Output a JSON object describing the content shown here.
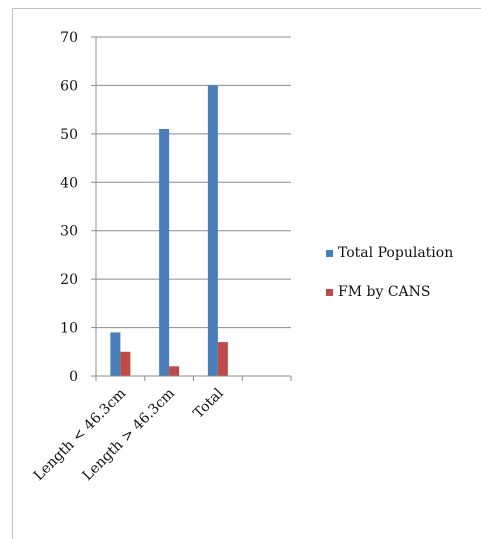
{
  "chart_data": {
    "type": "bar",
    "categories": [
      "Length < 46.3cm",
      "Length > 46.3cm",
      "Total",
      ""
    ],
    "series": [
      {
        "name": "Total Population",
        "color": "#4a7ebb",
        "values": [
          9,
          51,
          60,
          null
        ]
      },
      {
        "name": "FM by CANS",
        "color": "#be4b48",
        "values": [
          5,
          2,
          7,
          null
        ]
      }
    ],
    "ylim": [
      0,
      70
    ],
    "yticks": [
      0,
      10,
      20,
      30,
      40,
      50,
      60,
      70
    ],
    "grid": true,
    "legend_position": "right"
  }
}
